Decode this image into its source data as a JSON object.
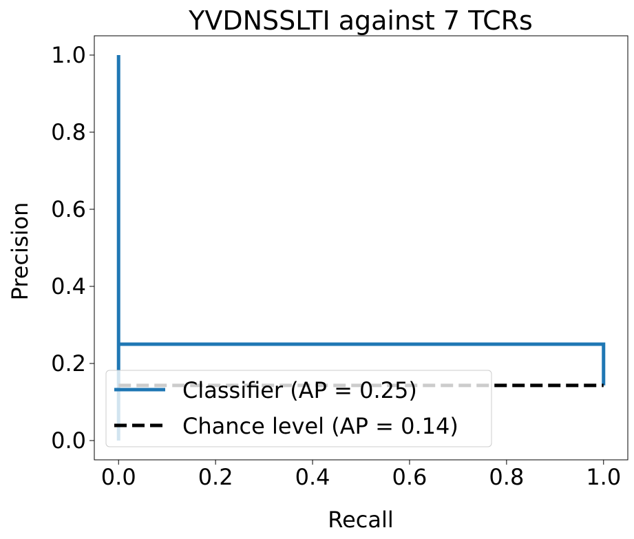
{
  "chart_data": {
    "type": "line",
    "title": "YVDNSSLTI against 7 TCRs",
    "xlabel": "Recall",
    "ylabel": "Precision",
    "xlim": [
      -0.05,
      1.05
    ],
    "ylim": [
      -0.05,
      1.05
    ],
    "xticks": [
      0.0,
      0.2,
      0.4,
      0.6,
      0.8,
      1.0
    ],
    "yticks": [
      0.0,
      0.2,
      0.4,
      0.6,
      0.8,
      1.0
    ],
    "xtick_labels": [
      "0.0",
      "0.2",
      "0.4",
      "0.6",
      "0.8",
      "1.0"
    ],
    "ytick_labels": [
      "0.0",
      "0.2",
      "0.4",
      "0.6",
      "0.8",
      "1.0"
    ],
    "grid": false,
    "legend_position": "bottom-left",
    "series": [
      {
        "name": "Classifier (AP = 0.25)",
        "color": "#1f77b4",
        "style": "solid",
        "x": [
          0.0,
          0.0,
          0.0,
          1.0,
          1.0
        ],
        "y": [
          0.0,
          1.0,
          0.25,
          0.25,
          0.143
        ]
      },
      {
        "name": "Chance level (AP = 0.14)",
        "color": "#000000",
        "style": "dashed",
        "x": [
          0.0,
          1.0
        ],
        "y": [
          0.143,
          0.143
        ]
      }
    ]
  }
}
